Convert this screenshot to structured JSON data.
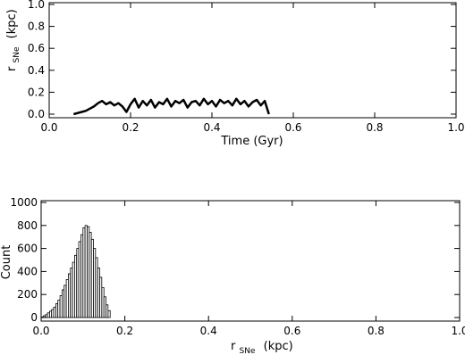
{
  "chart_data": [
    {
      "type": "line",
      "xlabel": "Time (Gyr)",
      "ylabel_main": "r",
      "ylabel_sub": "SNe",
      "ylabel_unit": "(kpc)",
      "xlim": [
        0.0,
        1.0
      ],
      "ylim": [
        0.0,
        1.0
      ],
      "x_ticks": [
        "0.0",
        "0.2",
        "0.4",
        "0.6",
        "0.8",
        "1.0"
      ],
      "y_ticks": [
        "0.0",
        "0.2",
        "0.4",
        "0.6",
        "0.8",
        "1.0"
      ],
      "grid": false,
      "series": [
        {
          "x": [
            0.06,
            0.08,
            0.09,
            0.1,
            0.11,
            0.12,
            0.13,
            0.14,
            0.15,
            0.16,
            0.17,
            0.18,
            0.19,
            0.2,
            0.21,
            0.22,
            0.23,
            0.24,
            0.25,
            0.26,
            0.27,
            0.28,
            0.29,
            0.3,
            0.31,
            0.32,
            0.33,
            0.34,
            0.35,
            0.36,
            0.37,
            0.38,
            0.39,
            0.4,
            0.41,
            0.42,
            0.43,
            0.44,
            0.45,
            0.46,
            0.47,
            0.48,
            0.49,
            0.5,
            0.51,
            0.52,
            0.53,
            0.54
          ],
          "y": [
            0.0,
            0.02,
            0.03,
            0.05,
            0.07,
            0.1,
            0.12,
            0.09,
            0.11,
            0.08,
            0.1,
            0.07,
            0.02,
            0.09,
            0.14,
            0.06,
            0.12,
            0.08,
            0.13,
            0.06,
            0.11,
            0.09,
            0.14,
            0.07,
            0.12,
            0.1,
            0.13,
            0.06,
            0.11,
            0.12,
            0.08,
            0.14,
            0.09,
            0.12,
            0.07,
            0.13,
            0.1,
            0.12,
            0.08,
            0.14,
            0.09,
            0.12,
            0.07,
            0.11,
            0.13,
            0.08,
            0.12,
            0.0
          ]
        }
      ]
    },
    {
      "type": "bar",
      "xlabel_main": "r",
      "xlabel_sub": "SNe",
      "xlabel_unit": "(kpc)",
      "ylabel": "Count",
      "xlim": [
        0.0,
        1.0
      ],
      "ylim": [
        0,
        1000
      ],
      "x_ticks": [
        "0.0",
        "0.2",
        "0.4",
        "0.6",
        "0.8",
        "1.0"
      ],
      "y_ticks": [
        "0",
        "200",
        "400",
        "600",
        "800",
        "1000"
      ],
      "grid": false,
      "bin_width": 0.005,
      "bin_start": 0.0,
      "values": [
        5,
        15,
        25,
        40,
        55,
        70,
        90,
        120,
        150,
        190,
        240,
        280,
        330,
        380,
        430,
        480,
        540,
        600,
        660,
        720,
        780,
        800,
        790,
        740,
        680,
        600,
        520,
        430,
        350,
        260,
        180,
        110,
        60
      ]
    }
  ]
}
